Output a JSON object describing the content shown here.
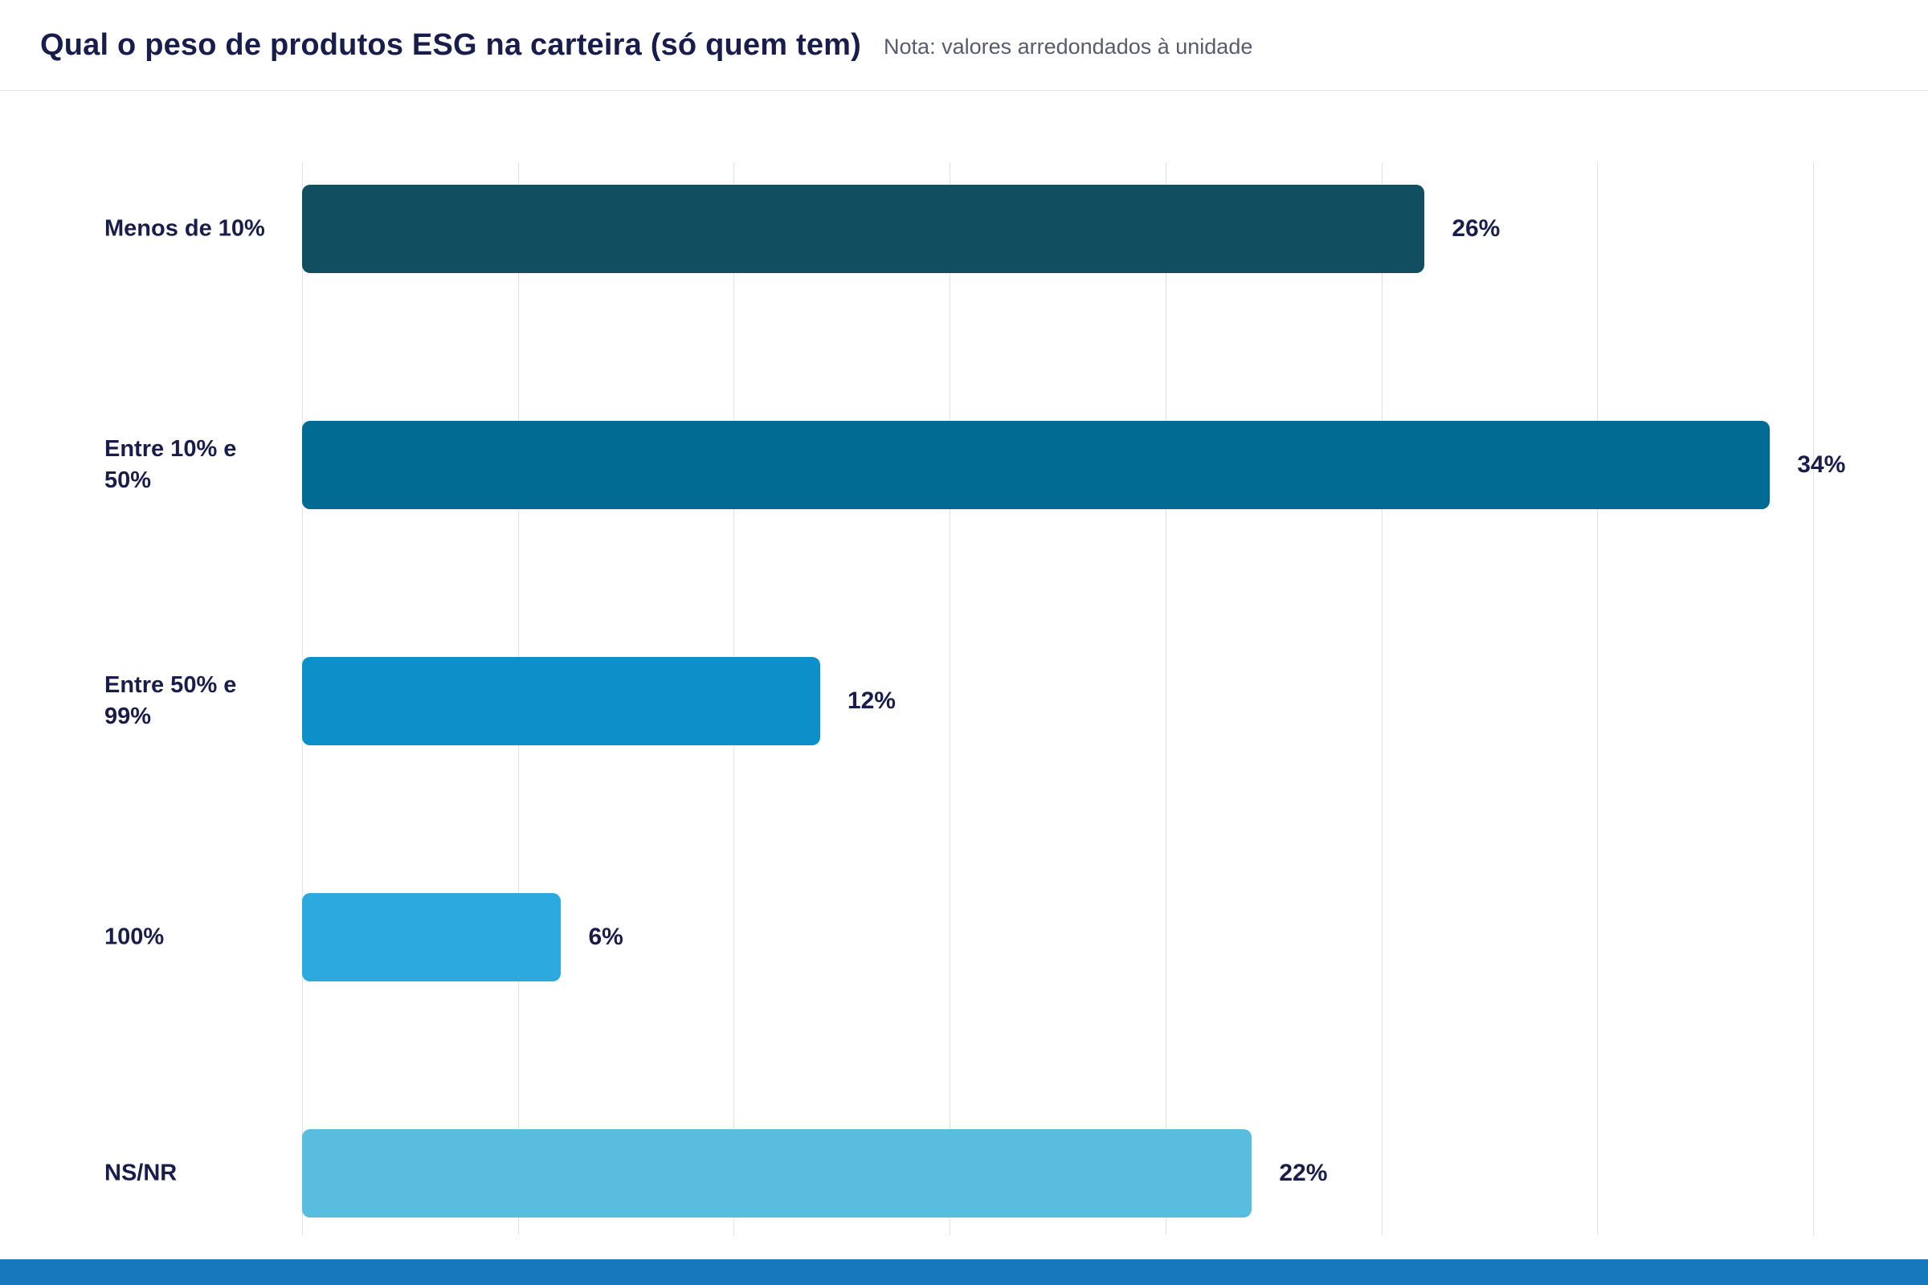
{
  "header": {
    "title": "Qual o peso de produtos ESG na carteira (só quem tem)",
    "note": "Nota: valores arredondados à unidade"
  },
  "chart_data": {
    "type": "bar",
    "orientation": "horizontal",
    "title": "Qual o peso de produtos ESG na carteira (só quem tem)",
    "subtitle": "Nota: valores arredondados à unidade",
    "categories": [
      "Menos de 10%",
      "Entre 10% e 50%",
      "Entre 50% e 99%",
      "100%",
      "NS/NR"
    ],
    "values": [
      26,
      34,
      12,
      6,
      22
    ],
    "value_labels": [
      "26%",
      "34%",
      "12%",
      "6%",
      "22%"
    ],
    "bar_colors": [
      "#114e60",
      "#016b93",
      "#0d90c9",
      "#2caadf",
      "#58bdde"
    ],
    "xlim": [
      0,
      35
    ],
    "gridline_step": 5,
    "grid": true,
    "legend": "none",
    "xlabel": "",
    "ylabel": ""
  },
  "colors": {
    "text_navy": "#191d4b",
    "note_gray": "#565b6e",
    "gridline": "#e0e1e6",
    "footer_accent": "#1878be",
    "background": "#ffffff"
  }
}
